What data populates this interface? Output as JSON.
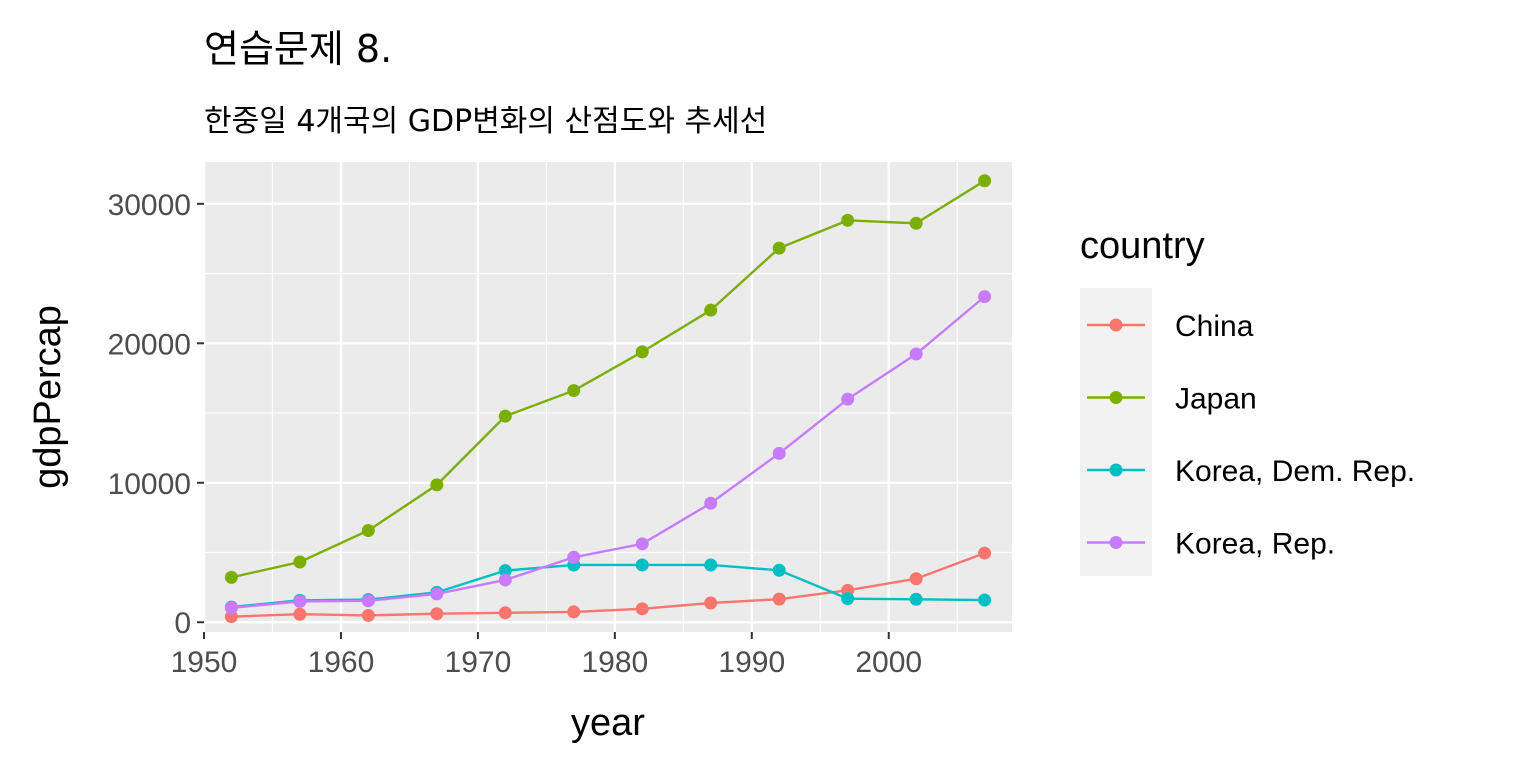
{
  "chart_data": {
    "type": "line",
    "title": "연습문제 8.",
    "subtitle": "한중일 4개국의 GDP변화의 산점도와 추세선",
    "xlabel": "year",
    "ylabel": "gdpPercap",
    "xlim": [
      1950,
      2009
    ],
    "ylim": [
      -700,
      33000
    ],
    "x_ticks": [
      1950,
      1960,
      1970,
      1980,
      1990,
      2000
    ],
    "y_ticks": [
      0,
      10000,
      20000,
      30000
    ],
    "grid": true,
    "legend": {
      "title": "country",
      "position": "right"
    },
    "x": [
      1952,
      1957,
      1962,
      1967,
      1972,
      1977,
      1982,
      1987,
      1992,
      1997,
      2002,
      2007
    ],
    "series": [
      {
        "name": "China",
        "color": "#F8766D",
        "values": [
          400,
          575,
          487,
          612,
          677,
          741,
          962,
          1379,
          1656,
          2289,
          3119,
          4959
        ]
      },
      {
        "name": "Japan",
        "color": "#7CAE00",
        "values": [
          3217,
          4318,
          6577,
          9847,
          14779,
          16610,
          19384,
          22376,
          26825,
          28817,
          28605,
          31656
        ]
      },
      {
        "name": "Korea, Dem. Rep.",
        "color": "#00BFC4",
        "values": [
          1088,
          1572,
          1622,
          2144,
          3702,
          4106,
          4107,
          4106,
          3726,
          1691,
          1647,
          1593
        ]
      },
      {
        "name": "Korea, Rep.",
        "color": "#C77CFF",
        "values": [
          1031,
          1488,
          1536,
          2029,
          3031,
          4657,
          5623,
          8533,
          12104,
          15994,
          19234,
          23348
        ]
      }
    ]
  }
}
